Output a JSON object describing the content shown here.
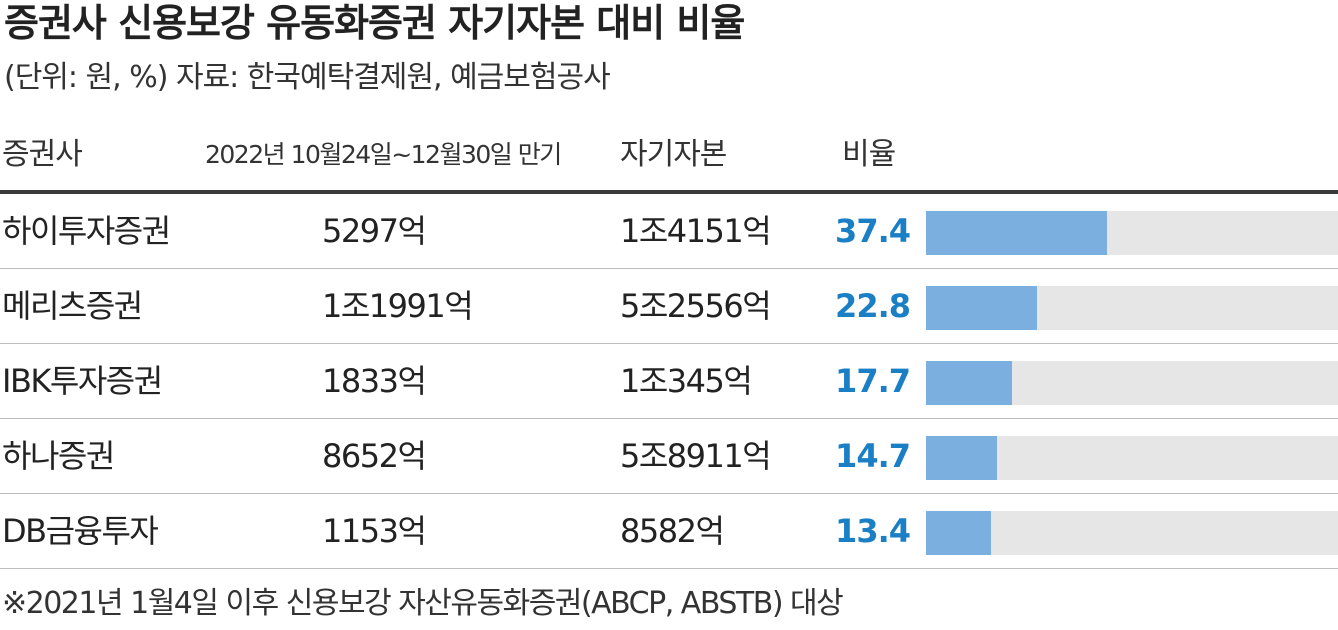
{
  "title": "증권사 신용보강 유동화증권 자기자본 대비 비율",
  "subtitle": "(단위: 원, %) 자료: 한국예탁결제원, 예금보험공사",
  "footnote": "※2021년 1월4일 이후 신용보강 자산유동화증권(ABCP, ABSTB) 대상",
  "colors": {
    "ratio_text": "#1a7fc4",
    "bar": "#7aafe0",
    "track": "#e6e6e6"
  },
  "chart_data": {
    "type": "table",
    "columns": [
      "증권사",
      "2022년 10월24일~12월30일 만기",
      "자기자본",
      "비율"
    ],
    "rows": [
      {
        "company": "하이투자증권",
        "maturing": "5297억",
        "equity": "1조4151억",
        "ratio": 37.4,
        "ratio_label": "37.4"
      },
      {
        "company": "메리츠증권",
        "maturing": "1조1991억",
        "equity": "5조2556억",
        "ratio": 22.8,
        "ratio_label": "22.8"
      },
      {
        "company": "IBK투자증권",
        "maturing": "1833억",
        "equity": "1조345억",
        "ratio": 17.7,
        "ratio_label": "17.7"
      },
      {
        "company": "하나증권",
        "maturing": "8652억",
        "equity": "5조8911억",
        "ratio": 14.7,
        "ratio_label": "14.7"
      },
      {
        "company": "DB금융투자",
        "maturing": "1153억",
        "equity": "8582억",
        "ratio": 13.4,
        "ratio_label": "13.4"
      }
    ],
    "bar_scale_max": 85
  }
}
